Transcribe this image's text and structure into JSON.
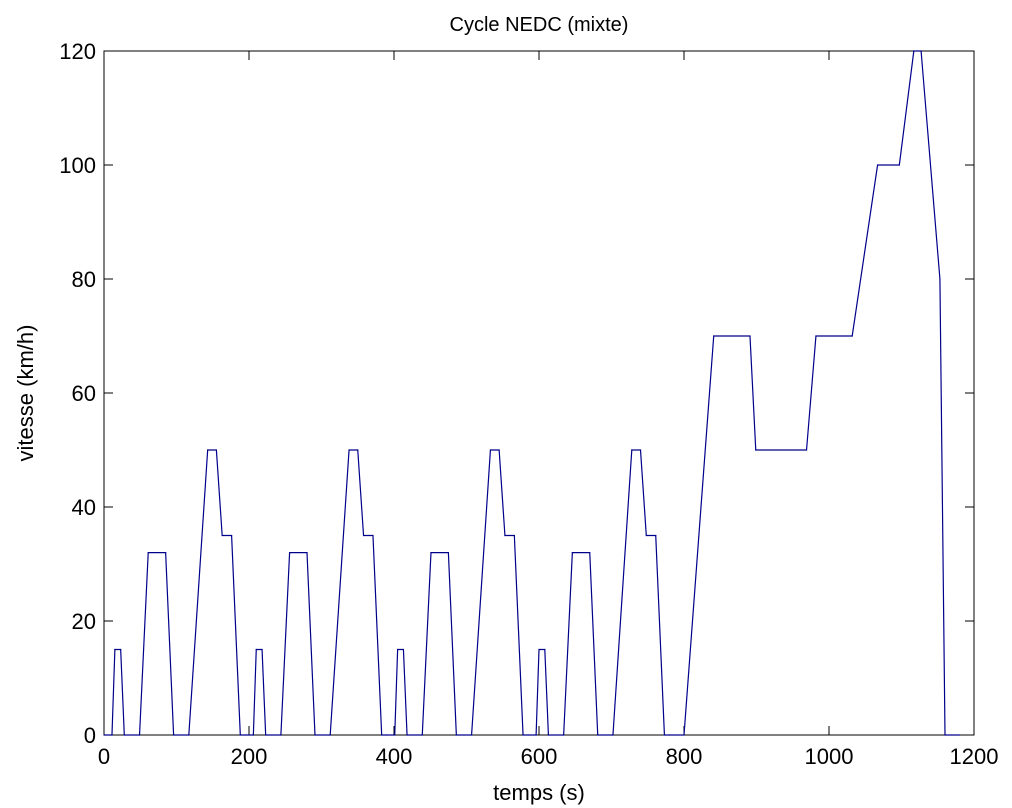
{
  "chart_data": {
    "type": "line",
    "title": "Cycle NEDC (mixte)",
    "xlabel": "temps (s)",
    "ylabel": "vitesse (km/h)",
    "xlim": [
      0,
      1200
    ],
    "ylim": [
      0,
      120
    ],
    "xticks": [
      0,
      200,
      400,
      600,
      800,
      1000,
      1200
    ],
    "yticks": [
      0,
      20,
      40,
      60,
      80,
      100,
      120
    ],
    "xtick_labels": [
      "0",
      "200",
      "400",
      "600",
      "800",
      "1000",
      "1200"
    ],
    "ytick_labels": [
      "0",
      "20",
      "40",
      "60",
      "80",
      "100",
      "120"
    ],
    "grid": false,
    "line_color": "#00008b",
    "series": [
      {
        "x": [
          0,
          11,
          15,
          23,
          28,
          49,
          61,
          85,
          96,
          117,
          143,
          155,
          163,
          176,
          188,
          195,
          206,
          210,
          218,
          223,
          244,
          256,
          280,
          291,
          312,
          338,
          350,
          358,
          371,
          383,
          390,
          401,
          405,
          413,
          418,
          439,
          451,
          475,
          486,
          507,
          533,
          545,
          553,
          566,
          578,
          585,
          596,
          600,
          608,
          613,
          634,
          646,
          670,
          681,
          702,
          728,
          740,
          748,
          761,
          773,
          780,
          800,
          841,
          891,
          899,
          969,
          982,
          1032,
          1067,
          1097,
          1117,
          1127,
          1153,
          1160,
          1180
        ],
        "y": [
          0,
          0,
          15,
          15,
          0,
          0,
          32,
          32,
          0,
          0,
          50,
          50,
          35,
          35,
          0,
          0,
          0,
          15,
          15,
          0,
          0,
          32,
          32,
          0,
          0,
          50,
          50,
          35,
          35,
          0,
          0,
          0,
          15,
          15,
          0,
          0,
          32,
          32,
          0,
          0,
          50,
          50,
          35,
          35,
          0,
          0,
          0,
          15,
          15,
          0,
          0,
          32,
          32,
          0,
          0,
          50,
          50,
          35,
          35,
          0,
          0,
          0,
          70,
          70,
          50,
          50,
          70,
          70,
          100,
          100,
          120,
          120,
          80,
          0,
          0
        ]
      }
    ]
  }
}
